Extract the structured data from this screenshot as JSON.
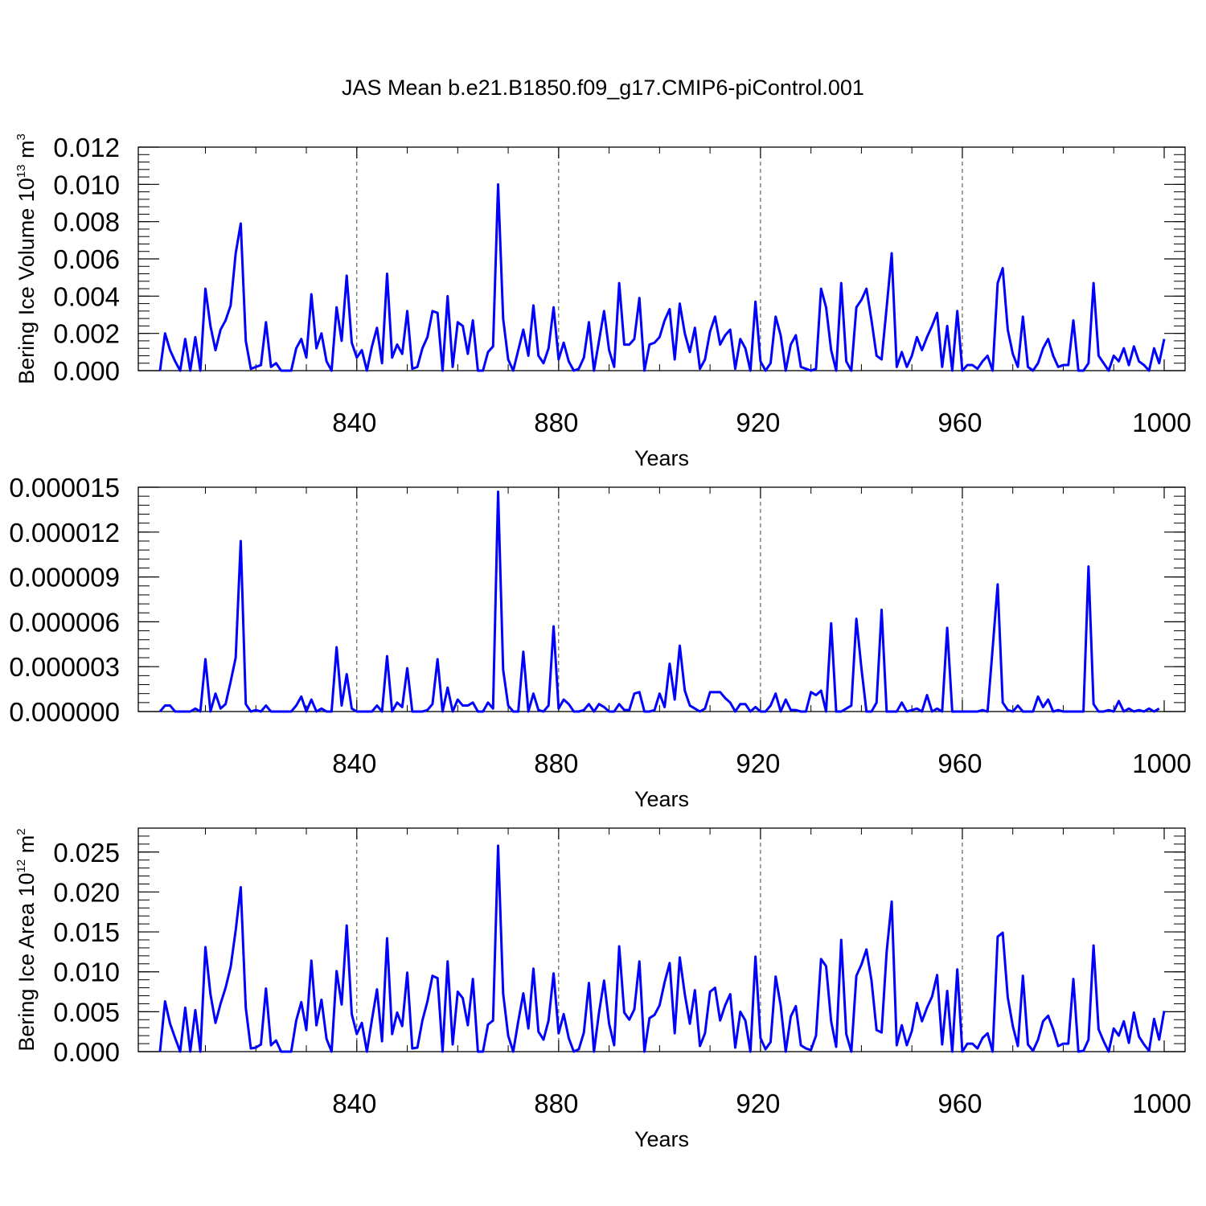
{
  "title": "JAS Mean b.e21.B1850.f09_g17.CMIP6-piControl.001",
  "series_color": "#0000ff",
  "chart_data": [
    {
      "type": "line",
      "xlabel": "Years",
      "ylabel_main": "Bering Ice Volume 10",
      "ylabel_exp": "13",
      "ylabel_unit": " m",
      "ylabel_unit_exp": "3",
      "xlim": [
        801,
        1000
      ],
      "ylim": [
        0,
        0.012
      ],
      "xticks": [
        840,
        880,
        920,
        960,
        1000
      ],
      "xtick_labels": [
        "840",
        "880",
        "920",
        "960",
        "1000"
      ],
      "yticks": [
        0,
        0.002,
        0.004,
        0.006,
        0.008,
        0.01,
        0.012
      ],
      "ytick_labels": [
        "0.000",
        "0.002",
        "0.004",
        "0.006",
        "0.008",
        "0.010",
        "0.012"
      ],
      "x_start": 801,
      "values": [
        0,
        0.002,
        0.0011,
        0.0005,
        0,
        0.0017,
        0,
        0.0018,
        0,
        0.0044,
        0.0024,
        0.0011,
        0.0022,
        0.0027,
        0.0035,
        0.0063,
        0.0079,
        0.0016,
        0.0001,
        0.0002,
        0.0003,
        0.0026,
        0.0002,
        0.0004,
        0,
        0,
        0,
        0.0012,
        0.0017,
        0.0007,
        0.0041,
        0.0012,
        0.002,
        0.0005,
        0,
        0.0034,
        0.0016,
        0.0051,
        0.0015,
        0.0007,
        0.0011,
        0,
        0.0013,
        0.0023,
        0.0004,
        0.0052,
        0.0007,
        0.0014,
        0.0009,
        0.0032,
        0.0001,
        0.0002,
        0.0012,
        0.0018,
        0.0032,
        0.0031,
        0,
        0.004,
        0.0002,
        0.0026,
        0.0024,
        0.0009,
        0.0027,
        0,
        0,
        0.001,
        0.0013,
        0.01,
        0.0028,
        0.0006,
        0,
        0.0011,
        0.0022,
        0.0008,
        0.0035,
        0.0008,
        0.0004,
        0.0012,
        0.0034,
        0.0006,
        0.0015,
        0.0005,
        0,
        0.0001,
        0.0007,
        0.0026,
        0,
        0.0016,
        0.0032,
        0.0011,
        0.0002,
        0.0047,
        0.0014,
        0.0014,
        0.0017,
        0.0039,
        0,
        0.0014,
        0.0015,
        0.0018,
        0.0027,
        0.0033,
        0.0006,
        0.0036,
        0.002,
        0.001,
        0.0023,
        0.0001,
        0.0006,
        0.0021,
        0.0029,
        0.0014,
        0.0019,
        0.0022,
        0.0001,
        0.0017,
        0.0012,
        0,
        0.0037,
        0.0005,
        0,
        0.0004,
        0.0029,
        0.0019,
        0,
        0.0014,
        0.0019,
        0.0002,
        0.0001,
        0,
        0.0001,
        0.0044,
        0.0034,
        0.0011,
        0,
        0.0047,
        0.0005,
        0,
        0.0034,
        0.0038,
        0.0044,
        0.0027,
        0.0008,
        0.0006,
        0.0034,
        0.0063,
        0.0002,
        0.001,
        0.0002,
        0.0008,
        0.0018,
        0.0011,
        0.0018,
        0.0024,
        0.0031,
        0.0002,
        0.0024,
        0,
        0.0032,
        0,
        0.0003,
        0.0003,
        0.0001,
        0.0005,
        0.0008,
        0,
        0.0047,
        0.0055,
        0.0022,
        0.0009,
        0.0002,
        0.0029,
        0.0002,
        0,
        0.0004,
        0.0012,
        0.0017,
        0.0008,
        0.0002,
        0.0003,
        0.0003,
        0.0027,
        0,
        0,
        0.0004,
        0.0047,
        0.0008,
        0.0004,
        0,
        0.0008,
        0.0005,
        0.0012,
        0.0003,
        0.0013,
        0.0005,
        0.0003,
        0,
        0.0012,
        0.0004,
        0.0017
      ]
    },
    {
      "type": "line",
      "xlabel": "Years",
      "ylabel_main": "",
      "ylabel_exp": "",
      "ylabel_unit": "",
      "ylabel_unit_exp": "",
      "xlim": [
        801,
        1000
      ],
      "ylim": [
        0,
        1.5e-05
      ],
      "xticks": [
        840,
        880,
        920,
        960,
        1000
      ],
      "xtick_labels": [
        "840",
        "880",
        "920",
        "960",
        "1000"
      ],
      "yticks": [
        0,
        3e-06,
        6e-06,
        9e-06,
        1.2e-05,
        1.5e-05
      ],
      "ytick_labels": [
        "0.000000",
        "0.000003",
        "0.000006",
        "0.000009",
        "0.000012",
        "0.000015"
      ],
      "x_start": 801,
      "values": [
        0,
        4e-07,
        4e-07,
        0,
        0,
        0,
        0,
        2e-07,
        0,
        3.5e-06,
        0,
        1.2e-06,
        2e-07,
        5e-07,
        2e-06,
        3.6e-06,
        1.14e-05,
        5e-07,
        0,
        1e-07,
        0,
        4e-07,
        0,
        0,
        0,
        0,
        0,
        4e-07,
        1e-06,
        0,
        8e-07,
        0,
        2e-07,
        0,
        0,
        4.3e-06,
        4e-07,
        2.5e-06,
        2e-07,
        0,
        0,
        0,
        0,
        4e-07,
        0,
        3.7e-06,
        0,
        6e-07,
        3e-07,
        2.9e-06,
        0,
        0,
        0,
        1e-07,
        5e-07,
        3.5e-06,
        0,
        1.6e-06,
        0,
        8e-07,
        4e-07,
        4e-07,
        6e-07,
        0,
        0,
        6e-07,
        2e-07,
        1.47e-05,
        2.8e-06,
        4e-07,
        0,
        0,
        4e-06,
        0,
        1.2e-06,
        1e-07,
        0,
        4e-07,
        5.7e-06,
        2e-07,
        8e-07,
        5e-07,
        0,
        0,
        1e-07,
        5e-07,
        0,
        5e-07,
        3e-07,
        0,
        0,
        5e-07,
        1e-07,
        1e-07,
        1.2e-06,
        1.3e-06,
        0,
        0,
        1e-07,
        1.2e-06,
        3e-07,
        3.2e-06,
        8e-07,
        4.4e-06,
        1.4e-06,
        4e-07,
        2e-07,
        0,
        2e-07,
        1.3e-06,
        1.3e-06,
        1.3e-06,
        9e-07,
        6e-07,
        0,
        5e-07,
        5e-07,
        0,
        3e-07,
        0,
        0,
        4e-07,
        1.2e-06,
        0,
        8e-07,
        1e-07,
        1e-07,
        0,
        0,
        1.3e-06,
        1.1e-06,
        1.4e-06,
        0,
        5.9e-06,
        0,
        0,
        2e-07,
        4e-07,
        6.2e-06,
        2.9e-06,
        0,
        0,
        6e-07,
        6.8e-06,
        0,
        0,
        0,
        6e-07,
        0,
        1e-07,
        2e-07,
        0,
        1.1e-06,
        0,
        2e-07,
        0,
        5.6e-06,
        0,
        0,
        0,
        0,
        0,
        0,
        1e-07,
        0,
        4.2e-06,
        8.5e-06,
        6e-07,
        1e-07,
        0,
        4e-07,
        0,
        0,
        0,
        1e-06,
        3e-07,
        8e-07,
        0,
        1e-07,
        0,
        0,
        0,
        0,
        0,
        9.7e-06,
        5e-07,
        0,
        0,
        1e-07,
        0,
        7e-07,
        0,
        2e-07,
        0,
        1e-07,
        0,
        2e-07,
        0,
        2e-07
      ]
    },
    {
      "type": "line",
      "xlabel": "Years",
      "ylabel_main": "Bering Ice Area 10",
      "ylabel_exp": "12",
      "ylabel_unit": " m",
      "ylabel_unit_exp": "2",
      "xlim": [
        801,
        1000
      ],
      "ylim": [
        0,
        0.028
      ],
      "xticks": [
        840,
        880,
        920,
        960,
        1000
      ],
      "xtick_labels": [
        "840",
        "880",
        "920",
        "960",
        "1000"
      ],
      "yticks": [
        0,
        0.005,
        0.01,
        0.015,
        0.02,
        0.025
      ],
      "ytick_labels": [
        "0.000",
        "0.005",
        "0.010",
        "0.015",
        "0.020",
        "0.025"
      ],
      "x_start": 801,
      "values": [
        0,
        0.0063,
        0.0035,
        0.0017,
        0,
        0.0055,
        0,
        0.0052,
        0,
        0.0131,
        0.0072,
        0.0036,
        0.006,
        0.008,
        0.0106,
        0.0152,
        0.0206,
        0.0055,
        0.0004,
        0.0005,
        0.0009,
        0.0079,
        0.0008,
        0.0014,
        0,
        0,
        0,
        0.0039,
        0.0062,
        0.0027,
        0.0114,
        0.0033,
        0.0065,
        0.0016,
        0,
        0.0101,
        0.0059,
        0.0158,
        0.0047,
        0.0022,
        0.0036,
        0,
        0.004,
        0.0078,
        0.0013,
        0.0142,
        0.0022,
        0.0049,
        0.0032,
        0.0099,
        0.0004,
        0.0005,
        0.0039,
        0.0063,
        0.0095,
        0.0092,
        0,
        0.0113,
        0.0009,
        0.0075,
        0.0067,
        0.0033,
        0.0091,
        0,
        0,
        0.0034,
        0.0039,
        0.0258,
        0.0073,
        0.002,
        0,
        0.0038,
        0.0073,
        0.0029,
        0.0104,
        0.0025,
        0.0015,
        0.0039,
        0.0098,
        0.0023,
        0.0047,
        0.0017,
        0,
        0.0003,
        0.0024,
        0.0086,
        0,
        0.0049,
        0.0089,
        0.0035,
        0.0008,
        0.0132,
        0.0049,
        0.004,
        0.0053,
        0.0113,
        0,
        0.0042,
        0.0046,
        0.0058,
        0.0087,
        0.0111,
        0.0023,
        0.0118,
        0.0072,
        0.0035,
        0.0077,
        0.0007,
        0.0023,
        0.0075,
        0.008,
        0.0039,
        0.0058,
        0.0072,
        0.0005,
        0.005,
        0.0039,
        0,
        0.0119,
        0.0017,
        0.0003,
        0.0012,
        0.0094,
        0.0058,
        0,
        0.0044,
        0.0057,
        0.0008,
        0.0004,
        0.0002,
        0.002,
        0.0116,
        0.0107,
        0.0038,
        0.0006,
        0.014,
        0.0022,
        0,
        0.0095,
        0.0109,
        0.0128,
        0.0089,
        0.0027,
        0.0024,
        0.0125,
        0.0188,
        0.0008,
        0.0033,
        0.0008,
        0.0026,
        0.0061,
        0.0038,
        0.0055,
        0.0069,
        0.0096,
        0.0009,
        0.0076,
        0,
        0.0103,
        0,
        0.001,
        0.001,
        0.0004,
        0.0017,
        0.0023,
        0,
        0.0144,
        0.0149,
        0.0068,
        0.0032,
        0.0007,
        0.0095,
        0.0009,
        0.0001,
        0.0015,
        0.0038,
        0.0045,
        0.0028,
        0.0007,
        0.001,
        0.001,
        0.0091,
        0,
        0.0001,
        0.0015,
        0.0133,
        0.0028,
        0.0013,
        0,
        0.0029,
        0.002,
        0.0038,
        0.0011,
        0.0049,
        0.0019,
        0.0009,
        0.0001,
        0.0041,
        0.0015,
        0.0051
      ]
    }
  ]
}
